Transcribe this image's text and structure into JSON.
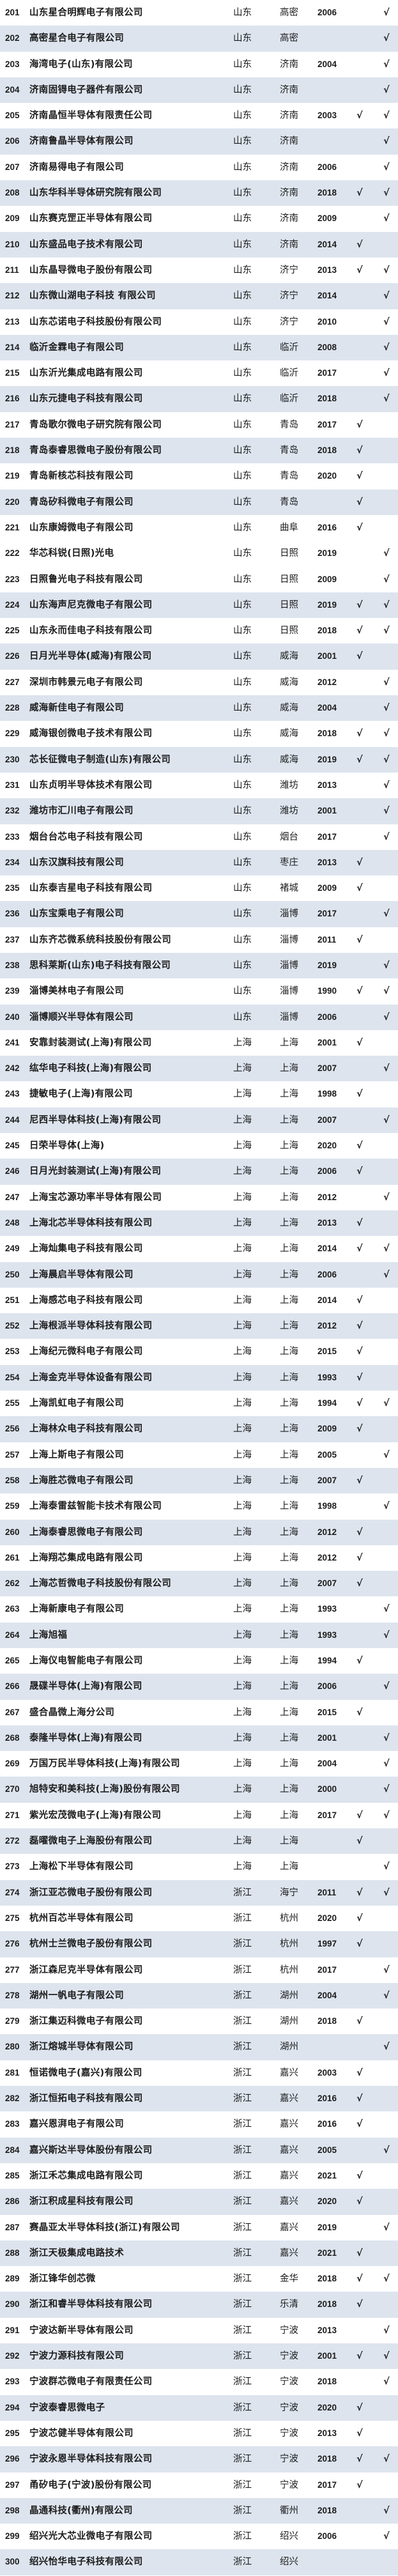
{
  "table": {
    "check_symbol": "√",
    "stripe_color": "#dde4ee",
    "rows": [
      {
        "no": "201",
        "name": "山东星合明辉电子有限公司",
        "province": "山东",
        "city": "高密",
        "year": "2006",
        "c1": false,
        "c2": true
      },
      {
        "no": "202",
        "name": "高密星合电子有限公司",
        "province": "山东",
        "city": "高密",
        "year": "",
        "c1": false,
        "c2": true
      },
      {
        "no": "203",
        "name": "海湾电子(山东)有限公司",
        "province": "山东",
        "city": "济南",
        "year": "2004",
        "c1": false,
        "c2": true
      },
      {
        "no": "204",
        "name": "济南固锝电子器件有限公司",
        "province": "山东",
        "city": "济南",
        "year": "",
        "c1": false,
        "c2": true
      },
      {
        "no": "205",
        "name": "济南晶恒半导体有限责任公司",
        "province": "山东",
        "city": "济南",
        "year": "2003",
        "c1": true,
        "c2": true
      },
      {
        "no": "206",
        "name": "济南鲁晶半导体有限公司",
        "province": "山东",
        "city": "济南",
        "year": "",
        "c1": false,
        "c2": true
      },
      {
        "no": "207",
        "name": "济南易得电子有限公司",
        "province": "山东",
        "city": "济南",
        "year": "2006",
        "c1": false,
        "c2": true
      },
      {
        "no": "208",
        "name": "山东华科半导体研究院有限公司",
        "province": "山东",
        "city": "济南",
        "year": "2018",
        "c1": true,
        "c2": true
      },
      {
        "no": "209",
        "name": "山东赛克罡正半导体有限公司",
        "province": "山东",
        "city": "济南",
        "year": "2009",
        "c1": false,
        "c2": true
      },
      {
        "no": "210",
        "name": "山东盛品电子技术有限公司",
        "province": "山东",
        "city": "济南",
        "year": "2014",
        "c1": true,
        "c2": false
      },
      {
        "no": "211",
        "name": "山东晶导微电子股份有限公司",
        "province": "山东",
        "city": "济宁",
        "year": "2013",
        "c1": true,
        "c2": true
      },
      {
        "no": "212",
        "name": "山东微山湖电子科技 有限公司",
        "province": "山东",
        "city": "济宁",
        "year": "2014",
        "c1": false,
        "c2": true
      },
      {
        "no": "213",
        "name": "山东芯诺电子科技股份有限公司",
        "province": "山东",
        "city": "济宁",
        "year": "2010",
        "c1": false,
        "c2": true
      },
      {
        "no": "214",
        "name": "临沂金霖电子有限公司",
        "province": "山东",
        "city": "临沂",
        "year": "2008",
        "c1": false,
        "c2": true
      },
      {
        "no": "215",
        "name": "山东沂光集成电路有限公司",
        "province": "山东",
        "city": "临沂",
        "year": "2017",
        "c1": false,
        "c2": true
      },
      {
        "no": "216",
        "name": "山东元捷电子科技有限公司",
        "province": "山东",
        "city": "临沂",
        "year": "2018",
        "c1": false,
        "c2": true
      },
      {
        "no": "217",
        "name": "青岛歌尔微电子研究院有限公司",
        "province": "山东",
        "city": "青岛",
        "year": "2017",
        "c1": true,
        "c2": false
      },
      {
        "no": "218",
        "name": "青岛泰睿思微电子股份有限公司",
        "province": "山东",
        "city": "青岛",
        "year": "2018",
        "c1": true,
        "c2": false
      },
      {
        "no": "219",
        "name": "青岛新核芯科技有限公司",
        "province": "山东",
        "city": "青岛",
        "year": "2020",
        "c1": true,
        "c2": false
      },
      {
        "no": "220",
        "name": "青岛矽科微电子有限公司",
        "province": "山东",
        "city": "青岛",
        "year": "",
        "c1": true,
        "c2": false
      },
      {
        "no": "221",
        "name": "山东康姆微电子有限公司",
        "province": "山东",
        "city": "曲阜",
        "year": "2016",
        "c1": true,
        "c2": false
      },
      {
        "no": "222",
        "name": "华芯科锐(日照)光电",
        "province": "山东",
        "city": "日照",
        "year": "2019",
        "c1": false,
        "c2": true
      },
      {
        "no": "223",
        "name": "日照鲁光电子科技有限公司",
        "province": "山东",
        "city": "日照",
        "year": "2009",
        "c1": false,
        "c2": true
      },
      {
        "no": "224",
        "name": "山东海声尼克微电子有限公司",
        "province": "山东",
        "city": "日照",
        "year": "2019",
        "c1": true,
        "c2": true
      },
      {
        "no": "225",
        "name": "山东永而佳电子科技有限公司",
        "province": "山东",
        "city": "日照",
        "year": "2018",
        "c1": true,
        "c2": true
      },
      {
        "no": "226",
        "name": "日月光半导体(威海)有限公司",
        "province": "山东",
        "city": "威海",
        "year": "2001",
        "c1": true,
        "c2": false
      },
      {
        "no": "227",
        "name": "深圳市韩景元电子有限公司",
        "province": "山东",
        "city": "威海",
        "year": "2012",
        "c1": false,
        "c2": true
      },
      {
        "no": "228",
        "name": "威海新佳电子有限公司",
        "province": "山东",
        "city": "威海",
        "year": "2004",
        "c1": false,
        "c2": true
      },
      {
        "no": "229",
        "name": "威海银创微电子技术有限公司",
        "province": "山东",
        "city": "威海",
        "year": "2018",
        "c1": true,
        "c2": true
      },
      {
        "no": "230",
        "name": "芯长征微电子制造(山东)有限公司",
        "province": "山东",
        "city": "威海",
        "year": "2019",
        "c1": true,
        "c2": true
      },
      {
        "no": "231",
        "name": "山东贞明半导体技术有限公司",
        "province": "山东",
        "city": "潍坊",
        "year": "2013",
        "c1": false,
        "c2": true
      },
      {
        "no": "232",
        "name": "潍坊市汇川电子有限公司",
        "province": "山东",
        "city": "潍坊",
        "year": "2001",
        "c1": false,
        "c2": true
      },
      {
        "no": "233",
        "name": "烟台台芯电子科技有限公司",
        "province": "山东",
        "city": "烟台",
        "year": "2017",
        "c1": false,
        "c2": true
      },
      {
        "no": "234",
        "name": "山东汉旗科技有限公司",
        "province": "山东",
        "city": "枣庄",
        "year": "2013",
        "c1": true,
        "c2": false
      },
      {
        "no": "235",
        "name": "山东泰吉星电子科技有限公司",
        "province": "山东",
        "city": "褚城",
        "year": "2009",
        "c1": true,
        "c2": false
      },
      {
        "no": "236",
        "name": "山东宝乘电子有限公司",
        "province": "山东",
        "city": "淄博",
        "year": "2017",
        "c1": false,
        "c2": true
      },
      {
        "no": "237",
        "name": "山东齐芯微系统科技股份有限公司",
        "province": "山东",
        "city": "淄博",
        "year": "2011",
        "c1": true,
        "c2": false
      },
      {
        "no": "238",
        "name": "思科莱斯(山东)电子科技有限公司",
        "province": "山东",
        "city": "淄博",
        "year": "2019",
        "c1": false,
        "c2": true
      },
      {
        "no": "239",
        "name": "淄博美林电子有限公司",
        "province": "山东",
        "city": "淄博",
        "year": "1990",
        "c1": true,
        "c2": true
      },
      {
        "no": "240",
        "name": "淄博顺兴半导体有限公司",
        "province": "山东",
        "city": "淄博",
        "year": "2006",
        "c1": false,
        "c2": true
      },
      {
        "no": "241",
        "name": "安靠封装测试(上海)有限公司",
        "province": "上海",
        "city": "上海",
        "year": "2001",
        "c1": true,
        "c2": false
      },
      {
        "no": "242",
        "name": "纮华电子科技(上海)有限公司",
        "province": "上海",
        "city": "上海",
        "year": "2007",
        "c1": false,
        "c2": true
      },
      {
        "no": "243",
        "name": "捷敏电子(上海)有限公司",
        "province": "上海",
        "city": "上海",
        "year": "1998",
        "c1": true,
        "c2": false
      },
      {
        "no": "244",
        "name": "尼西半导体科技(上海)有限公司",
        "province": "上海",
        "city": "上海",
        "year": "2007",
        "c1": false,
        "c2": true
      },
      {
        "no": "245",
        "name": "日荣半导体(上海)",
        "province": "上海",
        "city": "上海",
        "year": "2020",
        "c1": true,
        "c2": false
      },
      {
        "no": "246",
        "name": "日月光封装测试(上海)有限公司",
        "province": "上海",
        "city": "上海",
        "year": "2006",
        "c1": true,
        "c2": false
      },
      {
        "no": "247",
        "name": "上海宝芯源功率半导体有限公司",
        "province": "上海",
        "city": "上海",
        "year": "2012",
        "c1": false,
        "c2": true
      },
      {
        "no": "248",
        "name": "上海北芯半导体科技有限公司",
        "province": "上海",
        "city": "上海",
        "year": "2013",
        "c1": true,
        "c2": false
      },
      {
        "no": "249",
        "name": "上海灿集电子科技有限公司",
        "province": "上海",
        "city": "上海",
        "year": "2014",
        "c1": true,
        "c2": true
      },
      {
        "no": "250",
        "name": "上海晨启半导体有限公司",
        "province": "上海",
        "city": "上海",
        "year": "2006",
        "c1": false,
        "c2": true
      },
      {
        "no": "251",
        "name": "上海感芯电子科技有限公司",
        "province": "上海",
        "city": "上海",
        "year": "2014",
        "c1": true,
        "c2": false
      },
      {
        "no": "252",
        "name": "上海根派半导体科技有限公司",
        "province": "上海",
        "city": "上海",
        "year": "2012",
        "c1": true,
        "c2": false
      },
      {
        "no": "253",
        "name": "上海纪元微科电子有限公司",
        "province": "上海",
        "city": "上海",
        "year": "2015",
        "c1": true,
        "c2": false
      },
      {
        "no": "254",
        "name": "上海金克半导体设备有限公司",
        "province": "上海",
        "city": "上海",
        "year": "1993",
        "c1": true,
        "c2": false
      },
      {
        "no": "255",
        "name": "上海凯虹电子有限公司",
        "province": "上海",
        "city": "上海",
        "year": "1994",
        "c1": true,
        "c2": true
      },
      {
        "no": "256",
        "name": "上海林众电子科技有限公司",
        "province": "上海",
        "city": "上海",
        "year": "2009",
        "c1": true,
        "c2": false
      },
      {
        "no": "257",
        "name": "上海上斯电子有限公司",
        "province": "上海",
        "city": "上海",
        "year": "2005",
        "c1": false,
        "c2": true
      },
      {
        "no": "258",
        "name": "上海胜芯微电子有限公司",
        "province": "上海",
        "city": "上海",
        "year": "2007",
        "c1": true,
        "c2": false
      },
      {
        "no": "259",
        "name": "上海泰雷兹智能卡技术有限公司",
        "province": "上海",
        "city": "上海",
        "year": "1998",
        "c1": false,
        "c2": true
      },
      {
        "no": "260",
        "name": "上海泰睿思微电子有限公司",
        "province": "上海",
        "city": "上海",
        "year": "2012",
        "c1": true,
        "c2": false
      },
      {
        "no": "261",
        "name": "上海翔芯集成电路有限公司",
        "province": "上海",
        "city": "上海",
        "year": "2012",
        "c1": true,
        "c2": false
      },
      {
        "no": "262",
        "name": "上海芯哲微电子科技股份有限公司",
        "province": "上海",
        "city": "上海",
        "year": "2007",
        "c1": true,
        "c2": false
      },
      {
        "no": "263",
        "name": "上海新康电子有限公司",
        "province": "上海",
        "city": "上海",
        "year": "1993",
        "c1": false,
        "c2": true
      },
      {
        "no": "264",
        "name": "上海旭福",
        "province": "上海",
        "city": "上海",
        "year": "1993",
        "c1": false,
        "c2": true
      },
      {
        "no": "265",
        "name": "上海仪电智能电子有限公司",
        "province": "上海",
        "city": "上海",
        "year": "1994",
        "c1": true,
        "c2": false
      },
      {
        "no": "266",
        "name": "晟碟半导体(上海)有限公司",
        "province": "上海",
        "city": "上海",
        "year": "2006",
        "c1": false,
        "c2": true
      },
      {
        "no": "267",
        "name": "盛合晶微上海分公司",
        "province": "上海",
        "city": "上海",
        "year": "2015",
        "c1": true,
        "c2": false
      },
      {
        "no": "268",
        "name": "泰隆半导体(上海)有限公司",
        "province": "上海",
        "city": "上海",
        "year": "2001",
        "c1": false,
        "c2": true
      },
      {
        "no": "269",
        "name": "万国万民半导体科技(上海)有限公司",
        "province": "上海",
        "city": "上海",
        "year": "2004",
        "c1": false,
        "c2": true
      },
      {
        "no": "270",
        "name": "旭特安和美科技(上海)股份有限公司",
        "province": "上海",
        "city": "上海",
        "year": "2000",
        "c1": false,
        "c2": true
      },
      {
        "no": "271",
        "name": "紫光宏茂微电子(上海)有限公司",
        "province": "上海",
        "city": "上海",
        "year": "2017",
        "c1": true,
        "c2": true
      },
      {
        "no": "272",
        "name": "磊曜微电子上海股份有限公司",
        "province": "上海",
        "city": "上海",
        "year": "",
        "c1": true,
        "c2": false
      },
      {
        "no": "273",
        "name": "上海松下半导体有限公司",
        "province": "上海",
        "city": "上海",
        "year": "",
        "c1": false,
        "c2": true
      },
      {
        "no": "274",
        "name": "浙江亚芯微电子股份有限公司",
        "province": "浙江",
        "city": "海宁",
        "year": "2011",
        "c1": true,
        "c2": true
      },
      {
        "no": "275",
        "name": "杭州百芯半导体有限公司",
        "province": "浙江",
        "city": "杭州",
        "year": "2020",
        "c1": true,
        "c2": false
      },
      {
        "no": "276",
        "name": "杭州士兰微电子股份有限公司",
        "province": "浙江",
        "city": "杭州",
        "year": "1997",
        "c1": true,
        "c2": false
      },
      {
        "no": "277",
        "name": "浙江森尼克半导体有限公司",
        "province": "浙江",
        "city": "杭州",
        "year": "2017",
        "c1": false,
        "c2": true
      },
      {
        "no": "278",
        "name": "湖州一帆电子有限公司",
        "province": "浙江",
        "city": "湖州",
        "year": "2004",
        "c1": false,
        "c2": true
      },
      {
        "no": "279",
        "name": "浙江集迈科微电子有限公司",
        "province": "浙江",
        "city": "湖州",
        "year": "2018",
        "c1": true,
        "c2": false
      },
      {
        "no": "280",
        "name": "浙江熔城半导体有限公司",
        "province": "浙江",
        "city": "湖州",
        "year": "",
        "c1": false,
        "c2": true
      },
      {
        "no": "281",
        "name": "恒诺微电子(嘉兴)有限公司",
        "province": "浙江",
        "city": "嘉兴",
        "year": "2003",
        "c1": true,
        "c2": false
      },
      {
        "no": "282",
        "name": "浙江恒拓电子科技有限公司",
        "province": "浙江",
        "city": "嘉兴",
        "year": "2016",
        "c1": true,
        "c2": false
      },
      {
        "no": "283",
        "name": "嘉兴恩湃电子有限公司",
        "province": "浙江",
        "city": "嘉兴",
        "year": "2016",
        "c1": true,
        "c2": false
      },
      {
        "no": "284",
        "name": "嘉兴斯达半导体股份有限公司",
        "province": "浙江",
        "city": "嘉兴",
        "year": "2005",
        "c1": false,
        "c2": true
      },
      {
        "no": "285",
        "name": "浙江禾芯集成电路有限公司",
        "province": "浙江",
        "city": "嘉兴",
        "year": "2021",
        "c1": true,
        "c2": false
      },
      {
        "no": "286",
        "name": "浙江积成星科技有限公司",
        "province": "浙江",
        "city": "嘉兴",
        "year": "2020",
        "c1": true,
        "c2": false
      },
      {
        "no": "287",
        "name": "赛晶亚太半导体科技(浙江)有限公司",
        "province": "浙江",
        "city": "嘉兴",
        "year": "2019",
        "c1": false,
        "c2": true
      },
      {
        "no": "288",
        "name": "浙江天极集成电路技术",
        "province": "浙江",
        "city": "嘉兴",
        "year": "2021",
        "c1": true,
        "c2": false
      },
      {
        "no": "289",
        "name": "浙江锋华创芯微",
        "province": "浙江",
        "city": "金华",
        "year": "2018",
        "c1": true,
        "c2": true
      },
      {
        "no": "290",
        "name": "浙江和睿半导体科技有限公司",
        "province": "浙江",
        "city": "乐清",
        "year": "2018",
        "c1": true,
        "c2": false
      },
      {
        "no": "291",
        "name": "宁波达新半导体有限公司",
        "province": "浙江",
        "city": "宁波",
        "year": "2013",
        "c1": false,
        "c2": true
      },
      {
        "no": "292",
        "name": "宁波力源科技有限公司",
        "province": "浙江",
        "city": "宁波",
        "year": "2001",
        "c1": true,
        "c2": true
      },
      {
        "no": "293",
        "name": "宁波群芯微电子有限责任公司",
        "province": "浙江",
        "city": "宁波",
        "year": "2018",
        "c1": false,
        "c2": true
      },
      {
        "no": "294",
        "name": "宁波泰睿思微电子",
        "province": "浙江",
        "city": "宁波",
        "year": "2020",
        "c1": true,
        "c2": false
      },
      {
        "no": "295",
        "name": "宁波芯健半导体有限公司",
        "province": "浙江",
        "city": "宁波",
        "year": "2013",
        "c1": true,
        "c2": false
      },
      {
        "no": "296",
        "name": "宁波永恩半导体科技有限公司",
        "province": "浙江",
        "city": "宁波",
        "year": "2018",
        "c1": true,
        "c2": true
      },
      {
        "no": "297",
        "name": "甬矽电子(宁波)股份有限公司",
        "province": "浙江",
        "city": "宁波",
        "year": "2017",
        "c1": true,
        "c2": false
      },
      {
        "no": "298",
        "name": "晶通科技(衢州)有限公司",
        "province": "浙江",
        "city": "衢州",
        "year": "2018",
        "c1": false,
        "c2": true
      },
      {
        "no": "299",
        "name": "绍兴光大芯业微电子有限公司",
        "province": "浙江",
        "city": "绍兴",
        "year": "2006",
        "c1": false,
        "c2": true
      },
      {
        "no": "300",
        "name": "绍兴怡华电子科技有限公司",
        "province": "浙江",
        "city": "绍兴",
        "year": "",
        "c1": false,
        "c2": false
      }
    ]
  }
}
